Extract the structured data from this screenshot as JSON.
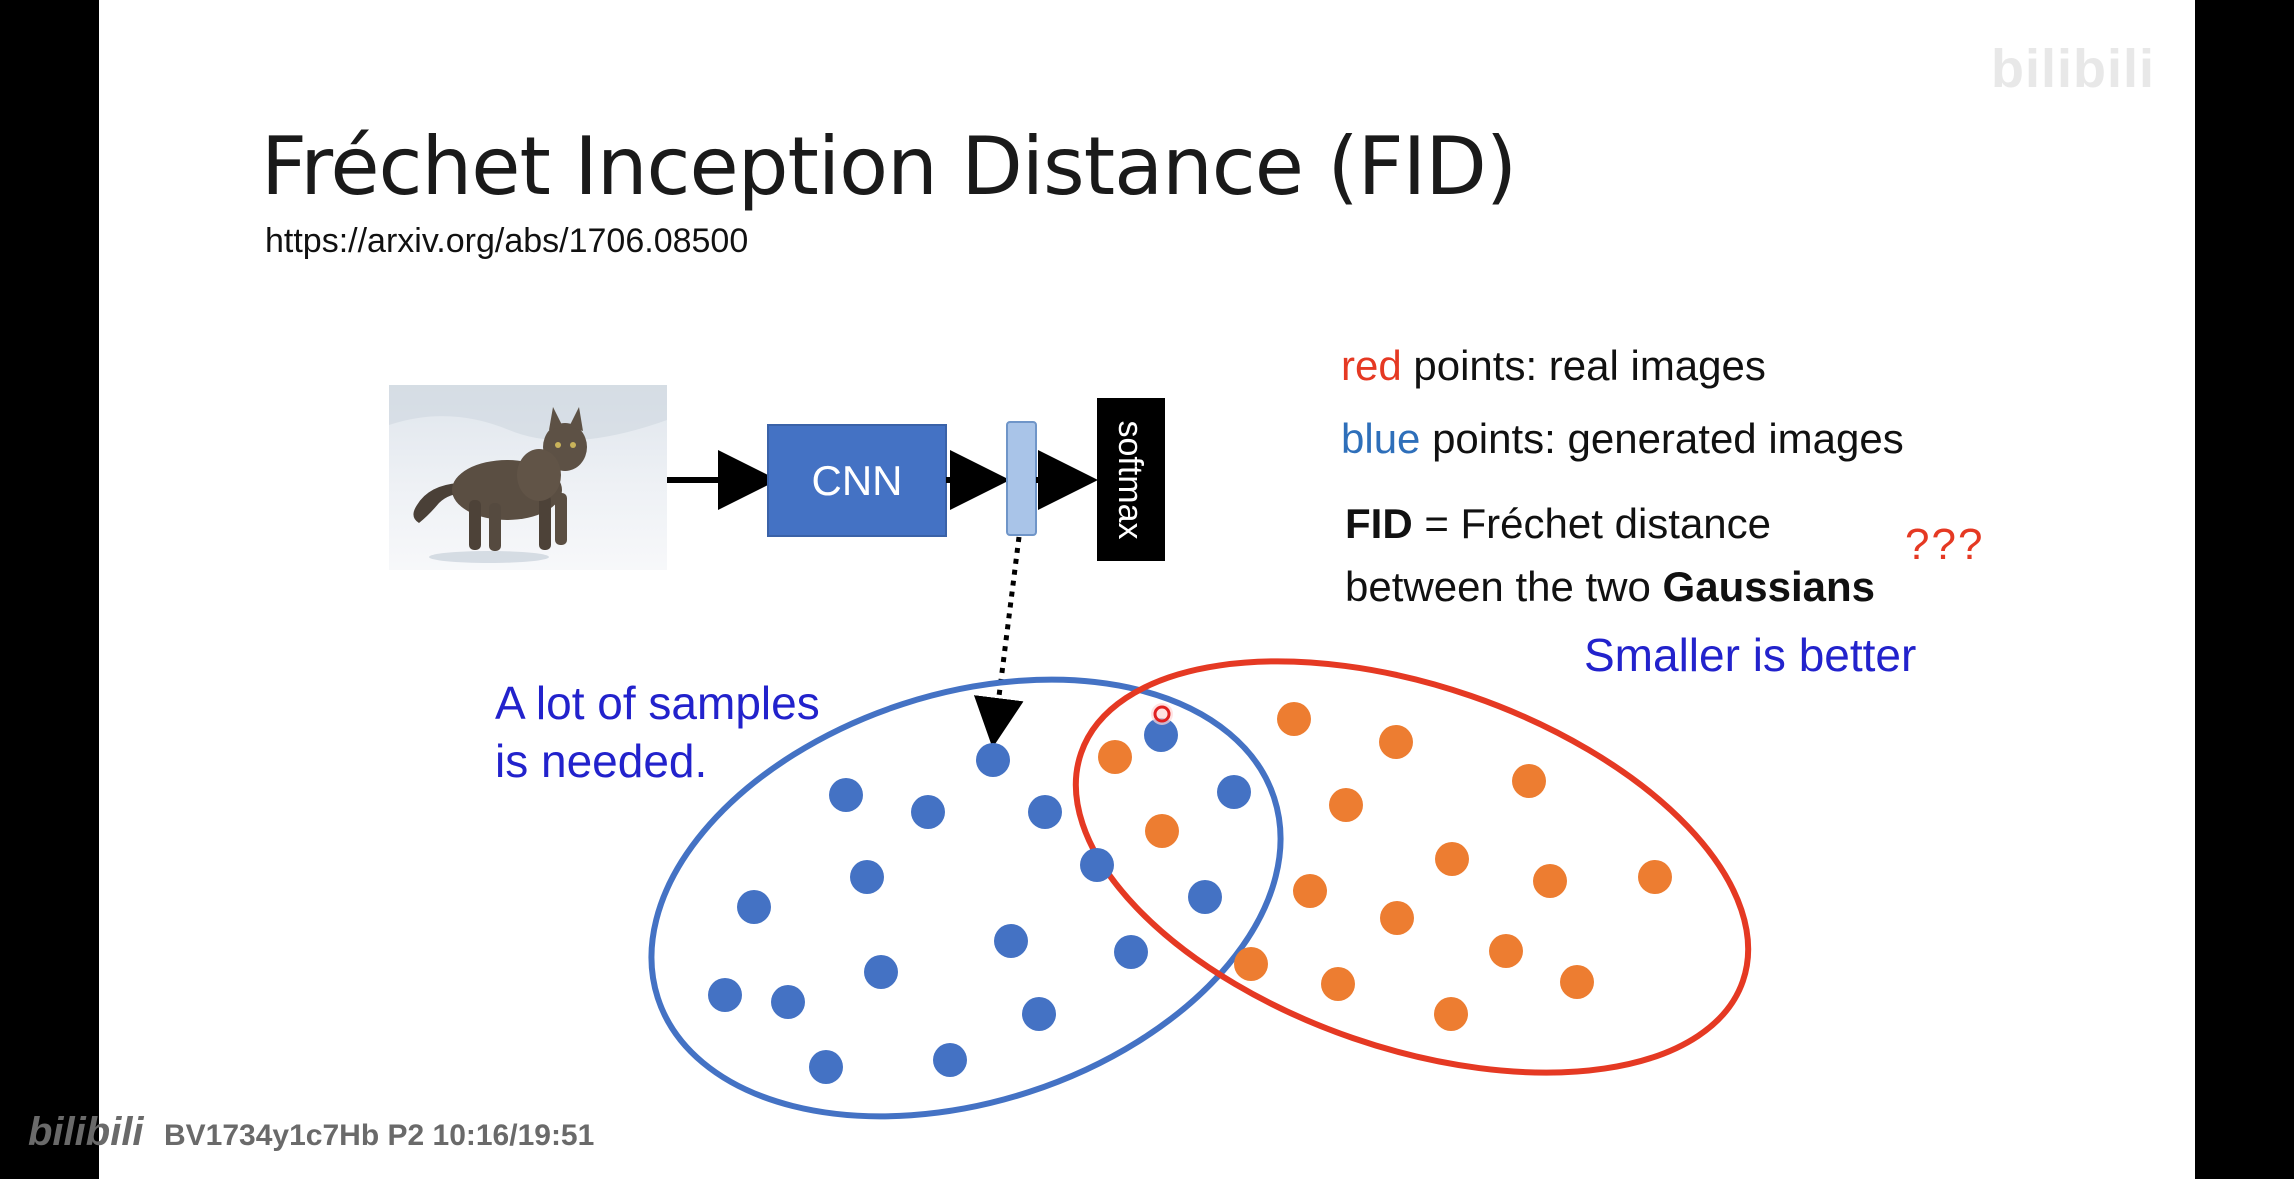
{
  "slide": {
    "title": "Fréchet Inception Distance (FID)",
    "url": "https://arxiv.org/abs/1706.08500"
  },
  "diagram": {
    "cnn_label": "CNN",
    "softmax_label": "softmax"
  },
  "legend": {
    "red_word": "red",
    "red_rest": "points: real images",
    "blue_word": "blue",
    "blue_rest": "points: generated images",
    "fid_bold": "FID",
    "fid_rest": "= Fréchet distance",
    "line2_rest": "between the two",
    "gaussians_bold": "Gaussians",
    "question": "???",
    "smaller": "Smaller is better"
  },
  "samples_note": {
    "line1": "A lot of samples",
    "line2": "is needed."
  },
  "watermark": {
    "logo_text": "bilibili",
    "video_info": "BV1734y1c7Hb P2 10:16/19:51"
  },
  "colors": {
    "red": "#e53923",
    "blue": "#4472c4",
    "orange": "#ed7d31",
    "annotation_blue": "#2222cc",
    "cnn_box": "#4472c4",
    "feature_bar": "#a9c4e8"
  },
  "icons": {
    "cat_photo": "cat-photo-icon",
    "cursor": "cursor-dot-icon"
  }
}
